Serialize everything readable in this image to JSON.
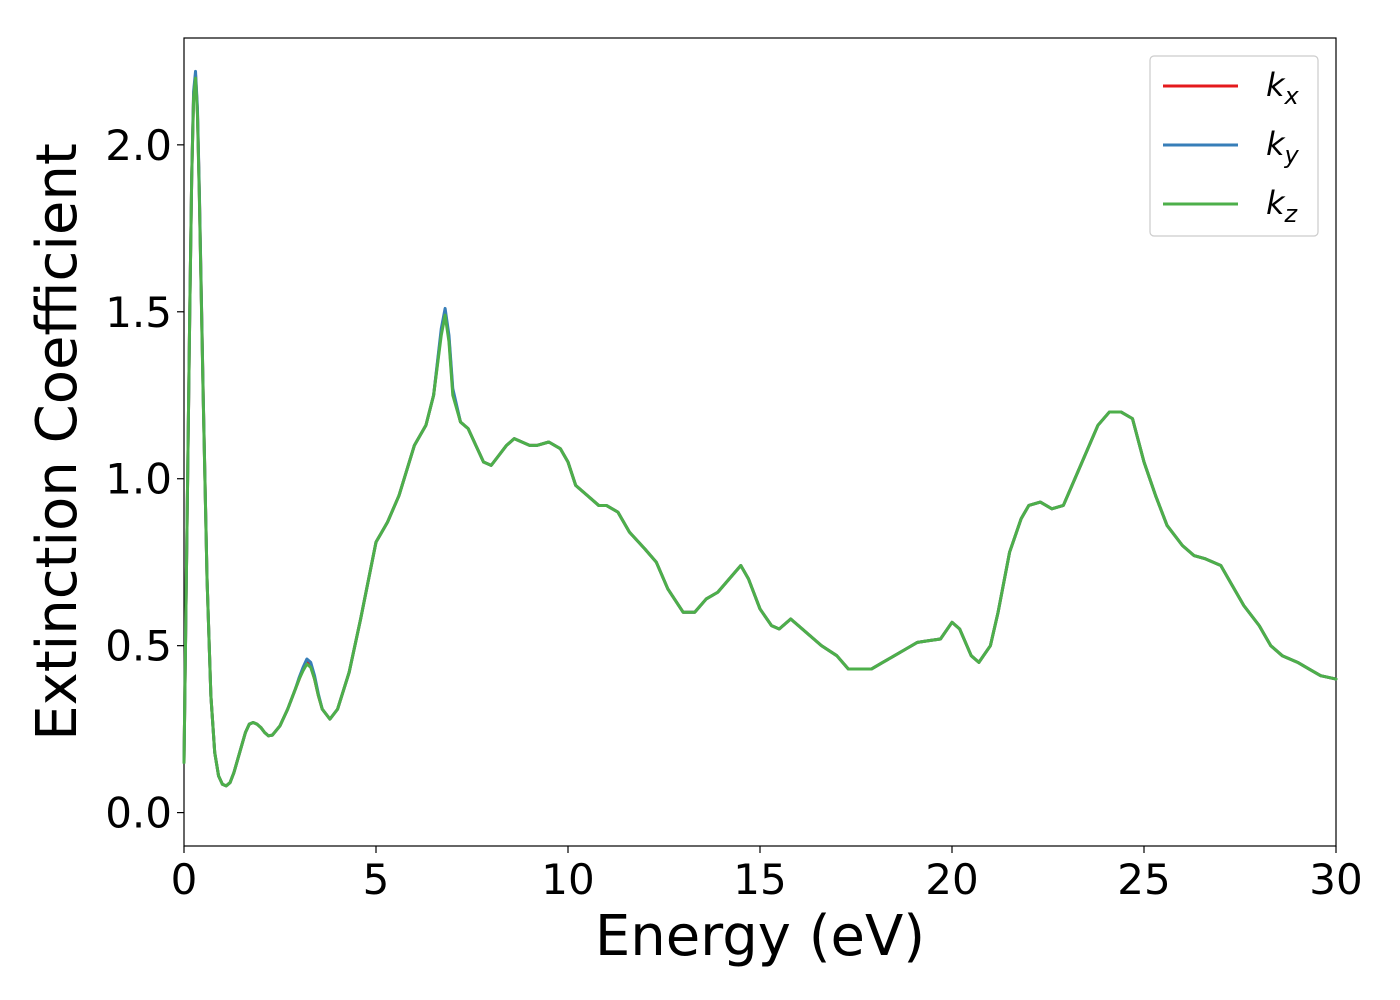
{
  "chart_data": {
    "type": "line",
    "xlabel": "Energy (eV)",
    "ylabel": "Extinction Coefficient",
    "xlim": [
      0,
      30
    ],
    "ylim": [
      -0.1,
      2.32
    ],
    "xticks": [
      0,
      5,
      10,
      15,
      20,
      25,
      30
    ],
    "xtick_labels": [
      "0",
      "5",
      "10",
      "15",
      "20",
      "25",
      "30"
    ],
    "yticks": [
      0.0,
      0.5,
      1.0,
      1.5,
      2.0
    ],
    "ytick_labels": [
      "0.0",
      "0.5",
      "1.0",
      "1.5",
      "2.0"
    ],
    "grid": false,
    "legend_position": "top-right",
    "series": [
      {
        "name": "k_x",
        "label_base": "k",
        "label_sub": "x",
        "color": "#e41a1c",
        "x": [
          0,
          0.05,
          0.1,
          0.15,
          0.2,
          0.25,
          0.3,
          0.35,
          0.4,
          0.5,
          0.6,
          0.7,
          0.8,
          0.9,
          1.0,
          1.1,
          1.2,
          1.3,
          1.4,
          1.5,
          1.6,
          1.7,
          1.8,
          1.9,
          2.0,
          2.1,
          2.2,
          2.3,
          2.5,
          2.7,
          2.9,
          3.0,
          3.1,
          3.2,
          3.3,
          3.4,
          3.5,
          3.6,
          3.8,
          4.0,
          4.3,
          4.6,
          5.0,
          5.3,
          5.6,
          6.0,
          6.3,
          6.5,
          6.7,
          6.8,
          6.9,
          7.0,
          7.2,
          7.4,
          7.6,
          7.8,
          8.0,
          8.2,
          8.4,
          8.6,
          8.8,
          9.0,
          9.2,
          9.5,
          9.8,
          10.0,
          10.2,
          10.5,
          10.8,
          11.0,
          11.3,
          11.6,
          12.0,
          12.3,
          12.6,
          13.0,
          13.3,
          13.6,
          13.9,
          14.2,
          14.5,
          14.7,
          15.0,
          15.3,
          15.5,
          15.8,
          16.0,
          16.3,
          16.6,
          17.0,
          17.3,
          17.6,
          17.9,
          18.2,
          18.5,
          18.8,
          19.1,
          19.4,
          19.7,
          20.0,
          20.2,
          20.5,
          20.7,
          21.0,
          21.2,
          21.5,
          21.8,
          22.0,
          22.3,
          22.6,
          22.9,
          23.2,
          23.5,
          23.8,
          24.1,
          24.4,
          24.7,
          25.0,
          25.3,
          25.6,
          26.0,
          26.3,
          26.6,
          27.0,
          27.3,
          27.6,
          28.0,
          28.3,
          28.6,
          29.0,
          29.3,
          29.6,
          30.0
        ],
        "y": [
          0.15,
          0.6,
          1.05,
          1.5,
          1.9,
          2.15,
          2.21,
          2.1,
          1.85,
          1.25,
          0.7,
          0.35,
          0.18,
          0.11,
          0.085,
          0.08,
          0.09,
          0.12,
          0.16,
          0.2,
          0.24,
          0.265,
          0.27,
          0.265,
          0.255,
          0.24,
          0.23,
          0.232,
          0.26,
          0.31,
          0.37,
          0.4,
          0.43,
          0.45,
          0.44,
          0.4,
          0.35,
          0.31,
          0.28,
          0.31,
          0.42,
          0.58,
          0.81,
          0.87,
          0.95,
          1.1,
          1.16,
          1.25,
          1.44,
          1.5,
          1.42,
          1.26,
          1.17,
          1.15,
          1.1,
          1.05,
          1.04,
          1.07,
          1.1,
          1.12,
          1.11,
          1.1,
          1.1,
          1.11,
          1.09,
          1.05,
          0.98,
          0.95,
          0.92,
          0.92,
          0.9,
          0.84,
          0.79,
          0.75,
          0.67,
          0.6,
          0.6,
          0.64,
          0.66,
          0.7,
          0.74,
          0.7,
          0.61,
          0.56,
          0.55,
          0.58,
          0.56,
          0.53,
          0.5,
          0.47,
          0.43,
          0.43,
          0.43,
          0.45,
          0.47,
          0.49,
          0.51,
          0.515,
          0.52,
          0.57,
          0.55,
          0.47,
          0.45,
          0.5,
          0.6,
          0.78,
          0.88,
          0.92,
          0.93,
          0.91,
          0.92,
          1.0,
          1.08,
          1.16,
          1.2,
          1.2,
          1.18,
          1.05,
          0.95,
          0.86,
          0.8,
          0.77,
          0.76,
          0.74,
          0.68,
          0.62,
          0.56,
          0.5,
          0.47,
          0.45,
          0.43,
          0.41,
          0.4
        ]
      },
      {
        "name": "k_y",
        "label_base": "k",
        "label_sub": "y",
        "color": "#377eb8",
        "x": [
          0,
          0.05,
          0.1,
          0.15,
          0.2,
          0.25,
          0.3,
          0.35,
          0.4,
          0.5,
          0.6,
          0.7,
          0.8,
          0.9,
          1.0,
          1.1,
          1.2,
          1.3,
          1.4,
          1.5,
          1.6,
          1.7,
          1.8,
          1.9,
          2.0,
          2.1,
          2.2,
          2.3,
          2.5,
          2.7,
          2.9,
          3.0,
          3.1,
          3.2,
          3.3,
          3.4,
          3.5,
          3.6,
          3.8,
          4.0,
          4.3,
          4.6,
          5.0,
          5.3,
          5.6,
          6.0,
          6.3,
          6.5,
          6.7,
          6.8,
          6.9,
          7.0,
          7.2,
          7.4,
          7.6,
          7.8,
          8.0,
          8.2,
          8.4,
          8.6,
          8.8,
          9.0,
          9.2,
          9.5,
          9.8,
          10.0,
          10.2,
          10.5,
          10.8,
          11.0,
          11.3,
          11.6,
          12.0,
          12.3,
          12.6,
          13.0,
          13.3,
          13.6,
          13.9,
          14.2,
          14.5,
          14.7,
          15.0,
          15.3,
          15.5,
          15.8,
          16.0,
          16.3,
          16.6,
          17.0,
          17.3,
          17.6,
          17.9,
          18.2,
          18.5,
          18.8,
          19.1,
          19.4,
          19.7,
          20.0,
          20.2,
          20.5,
          20.7,
          21.0,
          21.2,
          21.5,
          21.8,
          22.0,
          22.3,
          22.6,
          22.9,
          23.2,
          23.5,
          23.8,
          24.1,
          24.4,
          24.7,
          25.0,
          25.3,
          25.6,
          26.0,
          26.3,
          26.6,
          27.0,
          27.3,
          27.6,
          28.0,
          28.3,
          28.6,
          29.0,
          29.3,
          29.6,
          30.0
        ],
        "y": [
          0.15,
          0.6,
          1.05,
          1.5,
          1.9,
          2.16,
          2.22,
          2.11,
          1.86,
          1.25,
          0.7,
          0.35,
          0.18,
          0.11,
          0.085,
          0.08,
          0.09,
          0.12,
          0.16,
          0.2,
          0.24,
          0.265,
          0.27,
          0.265,
          0.255,
          0.24,
          0.23,
          0.232,
          0.26,
          0.31,
          0.37,
          0.405,
          0.435,
          0.46,
          0.45,
          0.41,
          0.355,
          0.31,
          0.28,
          0.31,
          0.42,
          0.58,
          0.81,
          0.87,
          0.95,
          1.1,
          1.16,
          1.25,
          1.45,
          1.51,
          1.43,
          1.27,
          1.17,
          1.15,
          1.1,
          1.05,
          1.04,
          1.07,
          1.1,
          1.12,
          1.11,
          1.1,
          1.1,
          1.11,
          1.09,
          1.05,
          0.98,
          0.95,
          0.92,
          0.92,
          0.9,
          0.84,
          0.79,
          0.75,
          0.67,
          0.6,
          0.6,
          0.64,
          0.66,
          0.7,
          0.74,
          0.7,
          0.61,
          0.56,
          0.55,
          0.58,
          0.56,
          0.53,
          0.5,
          0.47,
          0.43,
          0.43,
          0.43,
          0.45,
          0.47,
          0.49,
          0.51,
          0.515,
          0.52,
          0.57,
          0.55,
          0.47,
          0.45,
          0.5,
          0.6,
          0.78,
          0.88,
          0.92,
          0.93,
          0.91,
          0.92,
          1.0,
          1.08,
          1.16,
          1.2,
          1.2,
          1.18,
          1.05,
          0.95,
          0.86,
          0.8,
          0.77,
          0.76,
          0.74,
          0.68,
          0.62,
          0.56,
          0.5,
          0.47,
          0.45,
          0.43,
          0.41,
          0.4
        ]
      },
      {
        "name": "k_z",
        "label_base": "k",
        "label_sub": "z",
        "color": "#4daf4a",
        "x": [
          0,
          0.05,
          0.1,
          0.15,
          0.2,
          0.25,
          0.3,
          0.35,
          0.4,
          0.5,
          0.6,
          0.7,
          0.8,
          0.9,
          1.0,
          1.1,
          1.2,
          1.3,
          1.4,
          1.5,
          1.6,
          1.7,
          1.8,
          1.9,
          2.0,
          2.1,
          2.2,
          2.3,
          2.5,
          2.7,
          2.9,
          3.0,
          3.1,
          3.2,
          3.3,
          3.4,
          3.5,
          3.6,
          3.8,
          4.0,
          4.3,
          4.6,
          5.0,
          5.3,
          5.6,
          6.0,
          6.3,
          6.5,
          6.7,
          6.8,
          6.9,
          7.0,
          7.2,
          7.4,
          7.6,
          7.8,
          8.0,
          8.2,
          8.4,
          8.6,
          8.8,
          9.0,
          9.2,
          9.5,
          9.8,
          10.0,
          10.2,
          10.5,
          10.8,
          11.0,
          11.3,
          11.6,
          12.0,
          12.3,
          12.6,
          13.0,
          13.3,
          13.6,
          13.9,
          14.2,
          14.5,
          14.7,
          15.0,
          15.3,
          15.5,
          15.8,
          16.0,
          16.3,
          16.6,
          17.0,
          17.3,
          17.6,
          17.9,
          18.2,
          18.5,
          18.8,
          19.1,
          19.4,
          19.7,
          20.0,
          20.2,
          20.5,
          20.7,
          21.0,
          21.2,
          21.5,
          21.8,
          22.0,
          22.3,
          22.6,
          22.9,
          23.2,
          23.5,
          23.8,
          24.1,
          24.4,
          24.7,
          25.0,
          25.3,
          25.6,
          26.0,
          26.3,
          26.6,
          27.0,
          27.3,
          27.6,
          28.0,
          28.3,
          28.6,
          29.0,
          29.3,
          29.6,
          30.0
        ],
        "y": [
          0.15,
          0.6,
          1.05,
          1.5,
          1.9,
          2.14,
          2.2,
          2.09,
          1.84,
          1.24,
          0.7,
          0.35,
          0.18,
          0.11,
          0.085,
          0.08,
          0.09,
          0.12,
          0.16,
          0.2,
          0.24,
          0.265,
          0.27,
          0.265,
          0.255,
          0.24,
          0.23,
          0.232,
          0.26,
          0.31,
          0.37,
          0.4,
          0.425,
          0.445,
          0.435,
          0.4,
          0.35,
          0.31,
          0.28,
          0.31,
          0.42,
          0.58,
          0.81,
          0.87,
          0.95,
          1.1,
          1.16,
          1.25,
          1.43,
          1.49,
          1.41,
          1.25,
          1.17,
          1.15,
          1.1,
          1.05,
          1.04,
          1.07,
          1.1,
          1.12,
          1.11,
          1.1,
          1.1,
          1.11,
          1.09,
          1.05,
          0.98,
          0.95,
          0.92,
          0.92,
          0.9,
          0.84,
          0.79,
          0.75,
          0.67,
          0.6,
          0.6,
          0.64,
          0.66,
          0.7,
          0.74,
          0.7,
          0.61,
          0.56,
          0.55,
          0.58,
          0.56,
          0.53,
          0.5,
          0.47,
          0.43,
          0.43,
          0.43,
          0.45,
          0.47,
          0.49,
          0.51,
          0.515,
          0.52,
          0.57,
          0.55,
          0.47,
          0.45,
          0.5,
          0.6,
          0.78,
          0.88,
          0.92,
          0.93,
          0.91,
          0.92,
          1.0,
          1.08,
          1.16,
          1.2,
          1.2,
          1.18,
          1.05,
          0.95,
          0.86,
          0.8,
          0.77,
          0.76,
          0.74,
          0.68,
          0.62,
          0.56,
          0.5,
          0.47,
          0.45,
          0.43,
          0.41,
          0.4
        ]
      }
    ]
  }
}
